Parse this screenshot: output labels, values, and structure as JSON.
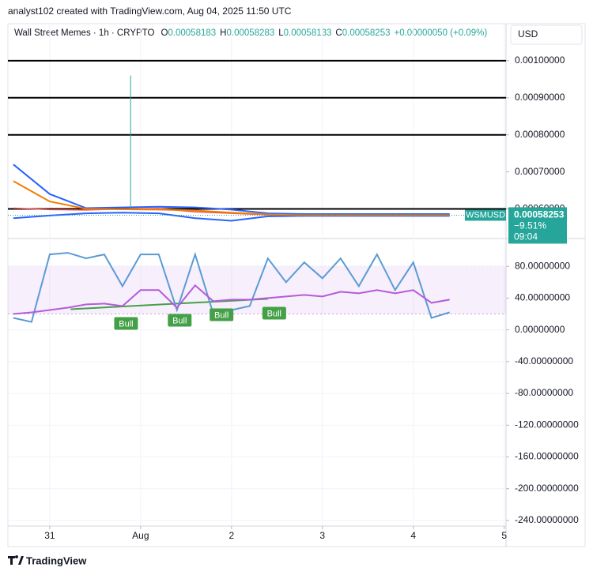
{
  "header": {
    "attribution": "analyst102 created with TradingView.com, Aug 04, 2025 11:50 UTC",
    "symbol": "Wall Street Memes · 1h · CRYPTO",
    "open_label": "O",
    "open": "0.00058183",
    "high_label": "H",
    "high": "0.00058283",
    "low_label": "L",
    "low": "0.00058133",
    "close_label": "C",
    "close": "0.00058253",
    "change": "+0.00000050 (+0.09%)",
    "currency": "USD"
  },
  "footer": "TradingView",
  "chart_data": [
    {
      "type": "line",
      "x": [
        -0.4,
        0,
        0.4,
        0.8,
        1.2,
        1.6,
        2.0,
        2.4,
        2.8,
        3.2,
        3.6,
        4.0,
        4.4
      ],
      "xlim": [
        -0.46,
        5.02
      ],
      "ylim": [
        0.00052,
        0.0011
      ],
      "yticks": [
        {
          "value": 0.0006,
          "label": "0.00060000"
        },
        {
          "value": 0.0007,
          "label": "0.00070000"
        },
        {
          "value": 0.0008,
          "label": "0.00080000"
        },
        {
          "value": 0.0009,
          "label": "0.00090000"
        },
        {
          "value": 0.001,
          "label": "0.00100000"
        }
      ],
      "levels": [
        0.001,
        0.0009,
        0.0008,
        0.0006
      ],
      "series": [
        {
          "name": "WSMUSD",
          "color": "#ef5350",
          "values": [
            0.000602,
            0.000598,
            0.000597,
            0.0006,
            0.000601,
            0.000592,
            0.000588,
            0.000584,
            0.000583,
            0.000583,
            0.000583,
            0.000583,
            0.000583
          ]
        },
        {
          "color": "#2962ff",
          "values": [
            0.00072,
            0.00064,
            0.000602,
            0.000604,
            0.000606,
            0.000604,
            0.000598,
            0.000588,
            0.000586,
            0.000586,
            0.000586,
            0.000586,
            0.000586
          ]
        },
        {
          "color": "#2962ff",
          "values": [
            0.000575,
            0.000582,
            0.000588,
            0.00059,
            0.000588,
            0.000575,
            0.000568,
            0.00058,
            0.000581,
            0.000581,
            0.000581,
            0.000581,
            0.000581
          ]
        },
        {
          "color": "#f57c00",
          "values": [
            0.000675,
            0.00062,
            0.0006,
            0.000599,
            0.000598,
            0.000596,
            0.00059,
            0.000585,
            0.000583,
            0.000583,
            0.000583,
            0.000583,
            0.000583
          ]
        }
      ],
      "wick": {
        "x": 0.89,
        "low": 0.0006,
        "high": 0.00096,
        "color": "#26a69a"
      },
      "price_label": {
        "last": "0.00058253",
        "change": "−9.51%",
        "countdown": "09:04",
        "color": "#26a69a"
      }
    },
    {
      "type": "line",
      "x": [
        -0.4,
        -0.2,
        0,
        0.2,
        0.4,
        0.6,
        0.8,
        1.0,
        1.2,
        1.4,
        1.6,
        1.8,
        2.0,
        2.2,
        2.4,
        2.6,
        2.8,
        3.0,
        3.2,
        3.4,
        3.6,
        3.8,
        4.0,
        4.2,
        4.4
      ],
      "xlim": [
        -0.46,
        5.02
      ],
      "xticks": [
        {
          "value": 0,
          "label": "31"
        },
        {
          "value": 1,
          "label": "Aug"
        },
        2,
        3,
        4,
        5
      ],
      "ylim": [
        -247,
        112
      ],
      "yticks": [
        {
          "value": 80,
          "label": "80.00000000"
        },
        {
          "value": 40,
          "label": "40.00000000"
        },
        {
          "value": 0,
          "label": "0.00000000"
        },
        {
          "value": -40,
          "label": "-40.00000000"
        },
        {
          "value": -80,
          "label": "-80.00000000"
        },
        {
          "value": -120,
          "label": "-120.00000000"
        },
        {
          "value": -160,
          "label": "-160.00000000"
        },
        {
          "value": -200,
          "label": "-200.00000000"
        },
        {
          "value": -240,
          "label": "-240.00000000"
        }
      ],
      "grid": true,
      "band": [
        20,
        80
      ],
      "series": [
        {
          "color": "#5b9bd5",
          "values": [
            15,
            10,
            95,
            97,
            90,
            95,
            55,
            95,
            95,
            25,
            95,
            20,
            25,
            30,
            90,
            60,
            85,
            65,
            90,
            55,
            95,
            50,
            85,
            15,
            22
          ]
        },
        {
          "color": "#b45bdb",
          "values": [
            20,
            22,
            25,
            28,
            32,
            33,
            30,
            50,
            50,
            28,
            56,
            36,
            38,
            38,
            40,
            42,
            44,
            42,
            48,
            46,
            50,
            46,
            50,
            34,
            38
          ]
        }
      ],
      "divergence": {
        "x": [
          0.23,
          2.4
        ],
        "values": [
          26,
          39
        ],
        "color": "#43a047"
      },
      "signals": [
        {
          "x": 0.84,
          "value": 16,
          "label": "Bull"
        },
        {
          "x": 1.43,
          "value": 20,
          "label": "Bull"
        },
        {
          "x": 1.89,
          "value": 27,
          "label": "Bull"
        },
        {
          "x": 2.47,
          "value": 29,
          "label": "Bull"
        }
      ]
    }
  ]
}
